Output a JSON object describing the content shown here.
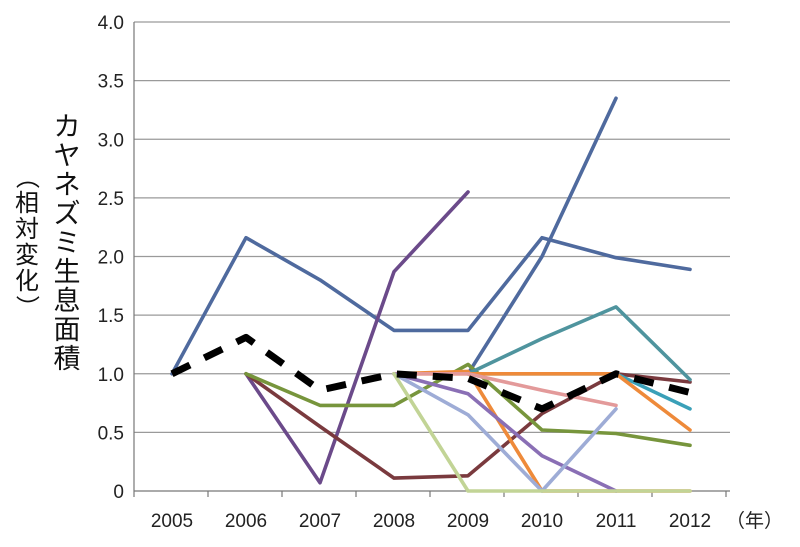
{
  "chart_data": {
    "type": "line",
    "x": [
      "2005",
      "2006",
      "2007",
      "2008",
      "2009",
      "2010",
      "2011",
      "2012"
    ],
    "x_unit": "（年）",
    "ylabel_main": "カヤネズミ生息面積",
    "ylabel_sub": "（相対変化）",
    "ylim": [
      0,
      4.0
    ],
    "yticks": [
      "0",
      "0.5",
      "1.0",
      "1.5",
      "2.0",
      "2.5",
      "3.0",
      "3.5",
      "4.0"
    ],
    "ytick_values": [
      0,
      0.5,
      1.0,
      1.5,
      2.0,
      2.5,
      3.0,
      3.5,
      4.0
    ],
    "grid": "horizontal",
    "legend": "none",
    "series": [
      {
        "color": "#4f6a9e",
        "values": [
          1.0,
          2.16,
          1.8,
          1.37,
          1.37,
          2.16,
          1.99,
          1.89
        ]
      },
      {
        "color": "#4f6a9e",
        "values": [
          null,
          null,
          null,
          null,
          1.0,
          2.0,
          3.35,
          null
        ]
      },
      {
        "color": "#6b4a8a",
        "values": [
          null,
          1.0,
          0.07,
          1.87,
          2.55,
          null,
          null,
          null
        ]
      },
      {
        "color": "#7a3a3e",
        "values": [
          null,
          1.0,
          0.55,
          0.11,
          0.13,
          0.66,
          1.0,
          0.93
        ]
      },
      {
        "color": "#77953c",
        "values": [
          null,
          1.0,
          0.73,
          0.73,
          1.08,
          0.52,
          0.49,
          0.39
        ]
      },
      {
        "color": "#4f949e",
        "values": [
          null,
          null,
          null,
          null,
          1.0,
          1.3,
          1.57,
          0.95
        ]
      },
      {
        "color": "#3aa0b8",
        "values": [
          null,
          null,
          null,
          null,
          1.0,
          1.0,
          1.0,
          0.7
        ]
      },
      {
        "color": "#ee8a3a",
        "values": [
          null,
          null,
          null,
          1.0,
          1.0,
          1.0,
          1.0,
          0.52
        ]
      },
      {
        "color": "#ee8a3a",
        "values": [
          null,
          null,
          null,
          1.0,
          1.02,
          0.0,
          0.0,
          0.0
        ]
      },
      {
        "color": "#e39a9a",
        "values": [
          null,
          null,
          null,
          1.0,
          1.0,
          0.86,
          0.73,
          null
        ]
      },
      {
        "color": "#8a6fb5",
        "values": [
          null,
          null,
          null,
          1.0,
          0.83,
          0.3,
          0.0,
          null
        ]
      },
      {
        "color": "#9eacd6",
        "values": [
          null,
          null,
          null,
          1.0,
          0.65,
          0.0,
          0.7,
          null
        ]
      },
      {
        "color": "#c2d496",
        "values": [
          null,
          null,
          null,
          1.0,
          0.0,
          0.0,
          0.0,
          0.0
        ]
      },
      {
        "color": "#000000",
        "style": "dashed",
        "values": [
          1.0,
          1.31,
          0.86,
          1.0,
          0.96,
          0.7,
          1.0,
          0.84
        ]
      }
    ]
  }
}
